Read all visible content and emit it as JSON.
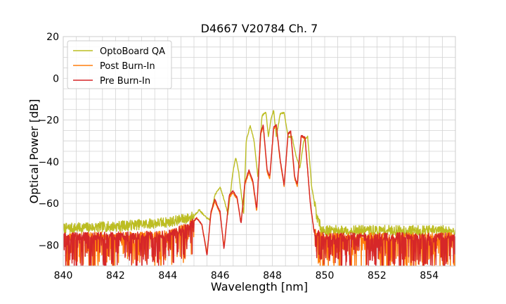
{
  "chart_data": {
    "type": "line",
    "title": "D4667 V20784 Ch. 7",
    "xlabel": "Wavelength [nm]",
    "ylabel": "Optical Power [dB]",
    "xlim": [
      840,
      855
    ],
    "ylim": [
      -90,
      20
    ],
    "x_ticks": [
      840,
      842,
      844,
      846,
      848,
      850,
      852,
      854
    ],
    "y_ticks": [
      20,
      0,
      -20,
      -40,
      -60,
      -80
    ],
    "x_tick_labels": [
      "840",
      "842",
      "844",
      "846",
      "848",
      "850",
      "852",
      "854"
    ],
    "y_tick_labels": [
      "20",
      "0",
      "−20",
      "−40",
      "−60",
      "−80"
    ],
    "grid": true,
    "legend_position": "top-left",
    "series": [
      {
        "name": "OptoBoard QA",
        "color": "#bcbd22",
        "noise_floor": -72,
        "points": [
          [
            840,
            -72
          ],
          [
            842,
            -71
          ],
          [
            844,
            -69
          ],
          [
            844.8,
            -67
          ],
          [
            845.0,
            -66
          ],
          [
            845.2,
            -63
          ],
          [
            845.4,
            -66
          ],
          [
            845.6,
            -68
          ],
          [
            845.8,
            -56
          ],
          [
            846.0,
            -52
          ],
          [
            846.1,
            -56
          ],
          [
            846.3,
            -65
          ],
          [
            846.5,
            -44
          ],
          [
            846.6,
            -38
          ],
          [
            846.7,
            -44
          ],
          [
            846.9,
            -65
          ],
          [
            847.0,
            -30
          ],
          [
            847.15,
            -22.5
          ],
          [
            847.3,
            -30
          ],
          [
            847.45,
            -48
          ],
          [
            847.6,
            -18
          ],
          [
            847.75,
            -16
          ],
          [
            847.85,
            -28
          ],
          [
            847.95,
            -19
          ],
          [
            848.05,
            -15.5
          ],
          [
            848.15,
            -28
          ],
          [
            848.3,
            -17
          ],
          [
            848.45,
            -16.5
          ],
          [
            848.6,
            -28
          ],
          [
            848.75,
            -28
          ],
          [
            848.9,
            -37
          ],
          [
            849.05,
            -43
          ],
          [
            849.2,
            -30
          ],
          [
            849.35,
            -28
          ],
          [
            849.5,
            -52
          ],
          [
            849.7,
            -66
          ],
          [
            849.85,
            -72
          ],
          [
            850,
            -73
          ],
          [
            852,
            -73
          ],
          [
            855,
            -73
          ]
        ]
      },
      {
        "name": "Post Burn-In",
        "color": "#ff7f0e",
        "noise_floor": -76,
        "points": [
          [
            840,
            -76
          ],
          [
            844,
            -75
          ],
          [
            844.8,
            -71
          ],
          [
            845.1,
            -67
          ],
          [
            845.3,
            -70
          ],
          [
            845.5,
            -84
          ],
          [
            845.65,
            -65
          ],
          [
            845.8,
            -59
          ],
          [
            846.0,
            -65
          ],
          [
            846.15,
            -81
          ],
          [
            846.35,
            -57
          ],
          [
            846.5,
            -55
          ],
          [
            846.65,
            -58
          ],
          [
            846.8,
            -69
          ],
          [
            846.95,
            -51
          ],
          [
            847.1,
            -45
          ],
          [
            847.25,
            -50
          ],
          [
            847.4,
            -64
          ],
          [
            847.55,
            -27
          ],
          [
            847.65,
            -23
          ],
          [
            847.8,
            -45
          ],
          [
            847.9,
            -48
          ],
          [
            848.05,
            -24
          ],
          [
            848.15,
            -23
          ],
          [
            848.3,
            -40
          ],
          [
            848.45,
            -52
          ],
          [
            848.6,
            -27
          ],
          [
            848.7,
            -26
          ],
          [
            848.85,
            -48
          ],
          [
            848.95,
            -52
          ],
          [
            849.1,
            -28
          ],
          [
            849.25,
            -29
          ],
          [
            849.45,
            -60
          ],
          [
            849.6,
            -74
          ],
          [
            850,
            -76
          ],
          [
            852,
            -76
          ],
          [
            855,
            -76
          ]
        ]
      },
      {
        "name": "Pre Burn-In",
        "color": "#d62728",
        "noise_floor": -76,
        "points": [
          [
            840,
            -76
          ],
          [
            844,
            -75
          ],
          [
            844.8,
            -71
          ],
          [
            845.1,
            -67
          ],
          [
            845.3,
            -70
          ],
          [
            845.5,
            -85
          ],
          [
            845.65,
            -64
          ],
          [
            845.8,
            -58
          ],
          [
            846.0,
            -64
          ],
          [
            846.15,
            -82
          ],
          [
            846.35,
            -56
          ],
          [
            846.5,
            -54
          ],
          [
            846.65,
            -57
          ],
          [
            846.8,
            -70
          ],
          [
            846.95,
            -50
          ],
          [
            847.1,
            -44
          ],
          [
            847.25,
            -49
          ],
          [
            847.4,
            -63
          ],
          [
            847.55,
            -26
          ],
          [
            847.65,
            -22.5
          ],
          [
            847.8,
            -44
          ],
          [
            847.9,
            -47
          ],
          [
            848.05,
            -23.5
          ],
          [
            848.15,
            -22.5
          ],
          [
            848.3,
            -39
          ],
          [
            848.45,
            -51
          ],
          [
            848.6,
            -26.5
          ],
          [
            848.7,
            -25.5
          ],
          [
            848.85,
            -47
          ],
          [
            848.95,
            -51
          ],
          [
            849.1,
            -27.5
          ],
          [
            849.25,
            -28.5
          ],
          [
            849.45,
            -60
          ],
          [
            849.6,
            -74
          ],
          [
            850,
            -76
          ],
          [
            852,
            -76
          ],
          [
            855,
            -76
          ]
        ]
      }
    ]
  }
}
